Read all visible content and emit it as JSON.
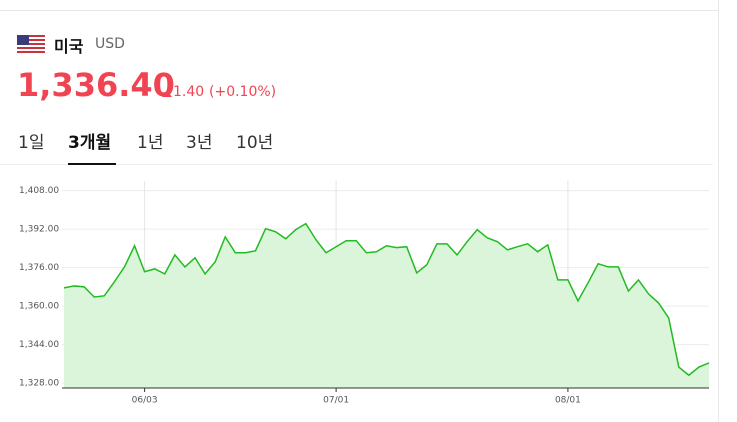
{
  "header": {
    "country": "미국",
    "code": "USD",
    "price": "1,336.40",
    "change": "1.40",
    "change_percent": "(+0.10%)"
  },
  "tabs": [
    "1일",
    "3개월",
    "1년",
    "3년",
    "10년"
  ],
  "active_tab": 1,
  "chart_data": {
    "type": "area",
    "categories": [
      null,
      null,
      null,
      null,
      null,
      null,
      null,
      null,
      "06/03",
      null,
      null,
      null,
      null,
      null,
      null,
      null,
      null,
      null,
      null,
      null,
      null,
      null,
      null,
      null,
      null,
      null,
      null,
      "07/01",
      null,
      null,
      null,
      null,
      null,
      null,
      null,
      null,
      null,
      null,
      null,
      null,
      null,
      null,
      null,
      null,
      null,
      null,
      null,
      null,
      null,
      null,
      "08/01",
      null,
      null,
      null,
      null,
      null,
      null,
      null,
      null,
      null,
      null,
      null,
      null,
      null,
      null
    ],
    "values": [
      1367.6,
      1368.4,
      1368.0,
      1363.8,
      1364.3,
      1370.1,
      1376.3,
      1385.1,
      1374.3,
      1375.5,
      1373.4,
      1381.3,
      1376.3,
      1380.1,
      1373.4,
      1378.4,
      1388.8,
      1382.2,
      1382.2,
      1383.0,
      1392.2,
      1390.9,
      1388.0,
      1391.8,
      1394.3,
      1387.6,
      1382.2,
      1384.7,
      1387.2,
      1387.2,
      1382.2,
      1382.6,
      1385.1,
      1384.3,
      1384.7,
      1373.8,
      1377.2,
      1385.9,
      1385.9,
      1381.3,
      1386.8,
      1391.8,
      1388.4,
      1386.8,
      1383.4,
      1384.7,
      1385.9,
      1382.6,
      1385.5,
      1370.9,
      1370.9,
      1362.2,
      1369.7,
      1377.6,
      1376.3,
      1376.3,
      1366.3,
      1370.9,
      1365.1,
      1361.3,
      1355.1,
      1334.7,
      1331.3,
      1334.7,
      1336.4
    ],
    "color": "#22bb22",
    "fill_color": "#daf5da",
    "ylim": [
      1326,
      1412
    ],
    "yticks": [
      {
        "value": 1328,
        "label": "1,328.00"
      },
      {
        "value": 1344,
        "label": "1,344.00"
      },
      {
        "value": 1360,
        "label": "1,360.00"
      },
      {
        "value": 1376,
        "label": "1,376.00"
      },
      {
        "value": 1392,
        "label": "1,392.00"
      },
      {
        "value": 1408,
        "label": "1,408.00"
      }
    ],
    "grid": true
  }
}
